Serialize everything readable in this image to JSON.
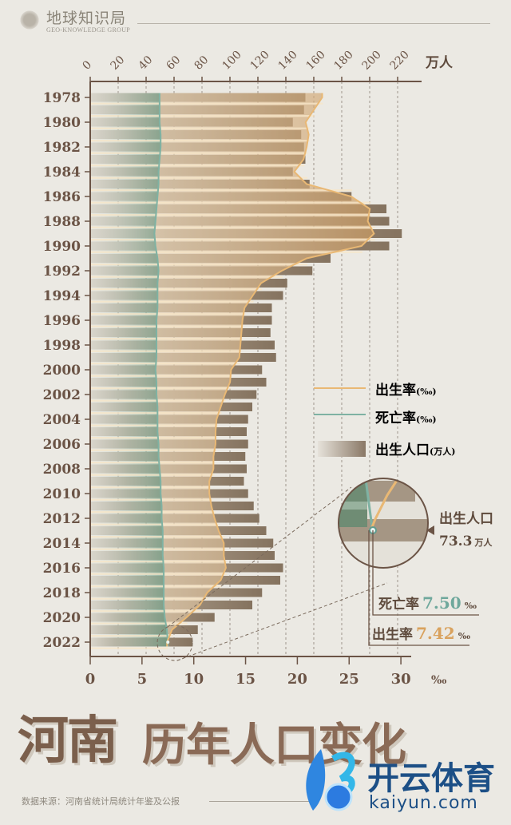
{
  "header": {
    "brand_cn": "地球知识局",
    "brand_en": "GEO-KNOWLEDGE GROUP"
  },
  "title": {
    "main": "河南",
    "sub": "历年人口变化"
  },
  "source": "数据来源：河南省统计局统计年鉴及公报",
  "watermark": {
    "cn": "开云体育",
    "en": "kaiyun.com"
  },
  "legend": {
    "birth_rate": {
      "label": "出生率",
      "unit": "(‰)"
    },
    "death_rate": {
      "label": "死亡率",
      "unit": "(‰)"
    },
    "births": {
      "label": "出生人口",
      "unit": "(万人)"
    }
  },
  "callout": {
    "births_label": "出生人口",
    "births_value": "73.3",
    "births_unit": "万人",
    "death_label": "死亡率",
    "death_value": "7.50",
    "death_unit": "‰",
    "birth_label": "出生率",
    "birth_value": "7.42",
    "birth_unit": "‰"
  },
  "colors": {
    "bar": "#8a7a6a",
    "birth_line": "#e9b874",
    "death_line": "#7fb2a3",
    "axis": "#6b5446",
    "death_area": "#8fb59f",
    "birth_area": "#d9b485"
  },
  "chart_data": {
    "type": "bar",
    "title": "河南 历年人口变化",
    "top_axis": {
      "label": "万人",
      "range": [
        0,
        220
      ],
      "ticks": [
        "0",
        "20",
        "40",
        "60",
        "80",
        "100",
        "120",
        "140",
        "160",
        "180",
        "200",
        "220"
      ]
    },
    "bottom_axis": {
      "label": "‰",
      "range": [
        0,
        30
      ],
      "ticks": [
        "0",
        "5",
        "10",
        "15",
        "20",
        "25",
        "30"
      ]
    },
    "year_labels": [
      "1978",
      "1980",
      "1982",
      "1984",
      "1986",
      "1988",
      "1990",
      "1992",
      "1994",
      "1996",
      "1998",
      "2000",
      "2002",
      "2004",
      "2006",
      "2008",
      "2010",
      "2012",
      "2014",
      "2016",
      "2018",
      "2020",
      "2022"
    ],
    "years": [
      1978,
      1979,
      1980,
      1981,
      1982,
      1983,
      1984,
      1985,
      1986,
      1987,
      1988,
      1989,
      1990,
      1991,
      1992,
      1993,
      1994,
      1995,
      1996,
      1997,
      1998,
      1999,
      2000,
      2001,
      2002,
      2003,
      2004,
      2005,
      2006,
      2007,
      2008,
      2009,
      2010,
      2011,
      2012,
      2013,
      2014,
      2015,
      2016,
      2017,
      2018,
      2019,
      2020,
      2021,
      2022
    ],
    "series": [
      {
        "name": "出生人口 (万人)",
        "type": "bar",
        "values": [
          154,
          153,
          145,
          151,
          153,
          154,
          145,
          157,
          187,
          212,
          214,
          223,
          214,
          172,
          159,
          141,
          138,
          130,
          130,
          129,
          132,
          133,
          123,
          126,
          119,
          116,
          113,
          112,
          113,
          111,
          112,
          110,
          113,
          117,
          121,
          126,
          131,
          132,
          138,
          136,
          123,
          116,
          89,
          77,
          73.3
        ]
      },
      {
        "name": "出生率 (‰)",
        "type": "line",
        "values": [
          22.4,
          21.6,
          20.8,
          21.1,
          20.9,
          20.6,
          19.7,
          20.9,
          25.2,
          27.0,
          26.8,
          27.4,
          26.2,
          20.9,
          18.5,
          16.5,
          15.7,
          14.9,
          14.7,
          14.6,
          14.5,
          14.4,
          13.6,
          13.5,
          13.0,
          12.6,
          12.2,
          12.1,
          12.1,
          11.9,
          11.9,
          11.5,
          11.5,
          11.7,
          12.0,
          12.4,
          12.9,
          12.9,
          13.1,
          12.6,
          11.3,
          10.6,
          9.3,
          7.9,
          7.42
        ]
      },
      {
        "name": "死亡率 (‰)",
        "type": "line",
        "values": [
          6.7,
          6.7,
          6.7,
          6.8,
          6.8,
          6.7,
          6.6,
          6.6,
          6.5,
          6.4,
          6.3,
          6.2,
          6.3,
          6.5,
          6.6,
          6.5,
          6.5,
          6.5,
          6.4,
          6.4,
          6.4,
          6.4,
          6.3,
          6.4,
          6.4,
          6.5,
          6.5,
          6.5,
          6.6,
          6.6,
          6.7,
          6.8,
          6.8,
          6.9,
          6.9,
          7.0,
          7.0,
          7.0,
          7.1,
          7.1,
          7.1,
          7.1,
          7.2,
          7.4,
          7.5
        ]
      }
    ]
  }
}
